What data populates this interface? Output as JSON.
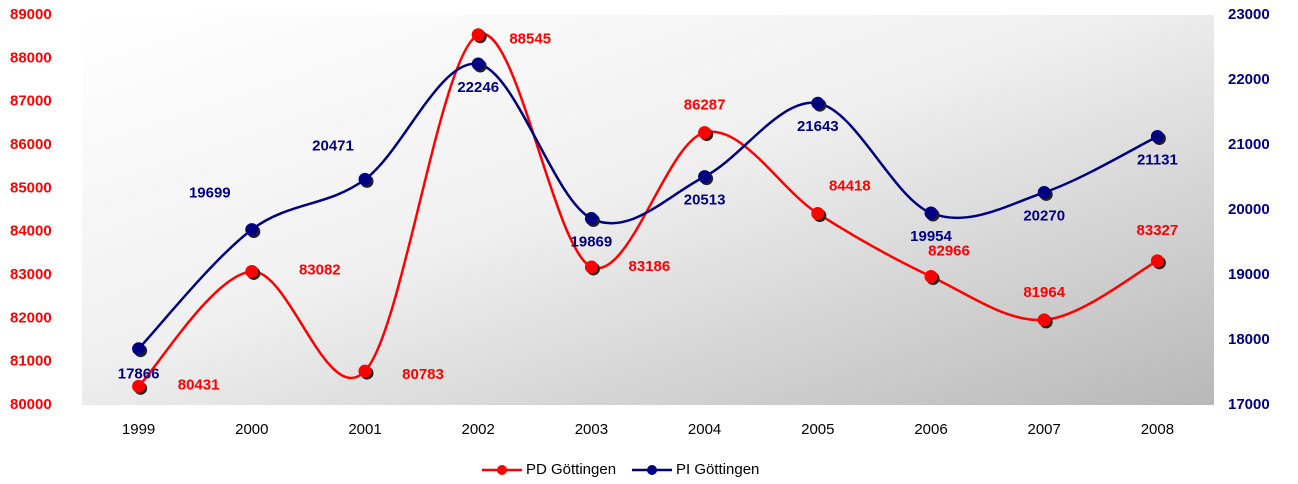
{
  "chart_data": {
    "type": "line",
    "categories": [
      "1999",
      "2000",
      "2001",
      "2002",
      "2003",
      "2004",
      "2005",
      "2006",
      "2007",
      "2008"
    ],
    "series": [
      {
        "name": "PD Göttingen",
        "color": "#ff0000",
        "axis": "y",
        "values": [
          80431,
          83082,
          80783,
          88545,
          83186,
          86287,
          84418,
          82966,
          81964,
          83327
        ]
      },
      {
        "name": "PI Göttingen",
        "color": "#000080",
        "axis": "y2",
        "values": [
          17866,
          19699,
          20471,
          22246,
          19869,
          20513,
          21643,
          19954,
          20270,
          21131
        ]
      }
    ],
    "ylim": [
      80000,
      89000
    ],
    "yticks": [
      80000,
      81000,
      82000,
      83000,
      84000,
      85000,
      86000,
      87000,
      88000,
      89000
    ],
    "y2lim": [
      17000,
      23000
    ],
    "y2ticks": [
      17000,
      18000,
      19000,
      20000,
      21000,
      22000,
      23000
    ],
    "legend": "bottom",
    "smooth": true
  }
}
